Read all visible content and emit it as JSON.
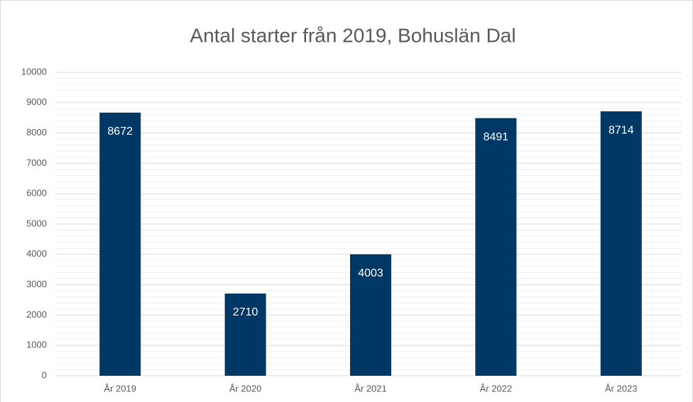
{
  "chart_data": {
    "type": "bar",
    "title": "Antal starter från 2019, Bohuslän Dal",
    "categories": [
      "År 2019",
      "År 2020",
      "År 2021",
      "År 2022",
      "År 2023"
    ],
    "values": [
      8672,
      2710,
      4003,
      8491,
      8714
    ],
    "color": "#003865",
    "ylim": [
      0,
      10000
    ],
    "yticks": [
      0,
      1000,
      2000,
      3000,
      4000,
      5000,
      6000,
      7000,
      8000,
      9000,
      10000
    ],
    "grid": true,
    "minor_grid": true
  }
}
